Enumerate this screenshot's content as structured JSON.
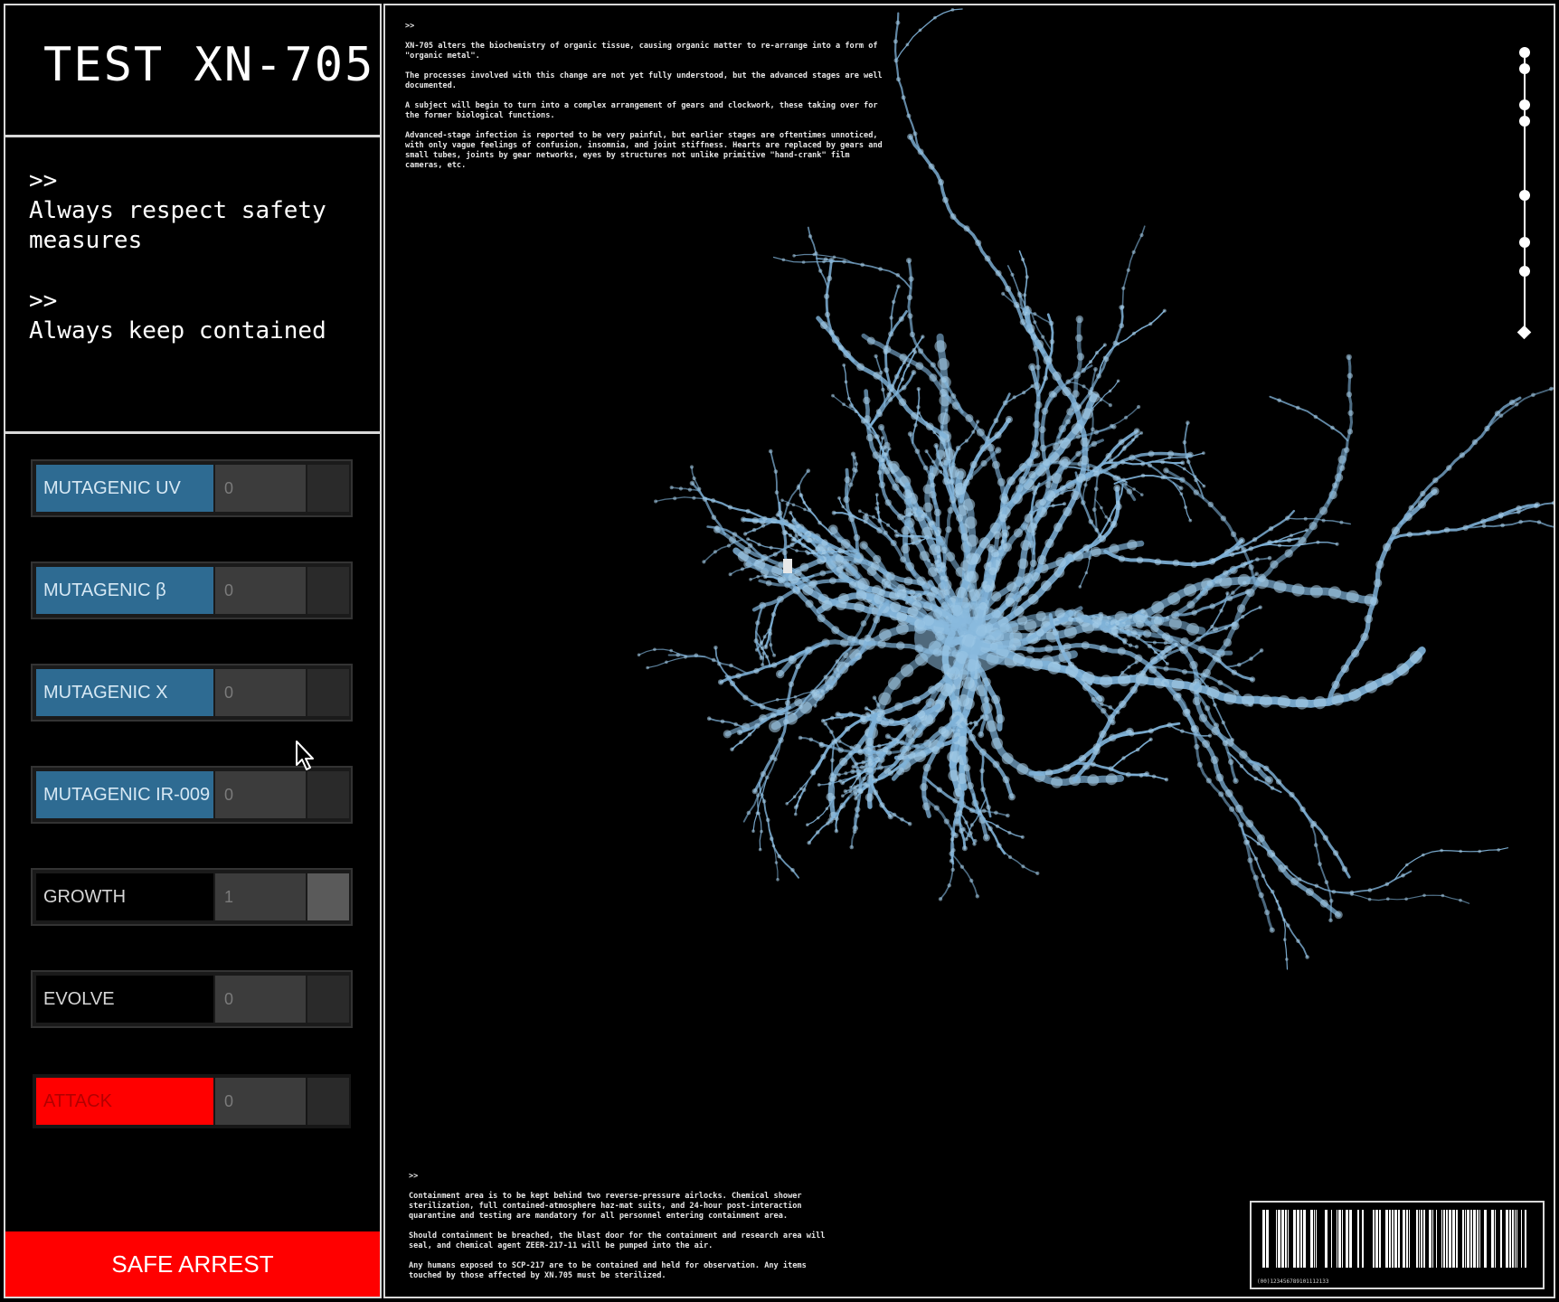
{
  "sidebar": {
    "title": "TEST XN-705",
    "notes": [
      {
        "prompt": ">>",
        "text": "Always respect safety measures"
      },
      {
        "prompt": ">>",
        "text": "Always keep contained"
      }
    ],
    "controls": [
      {
        "label": "MUTAGENIC UV",
        "value": "0"
      },
      {
        "label": "MUTAGENIC β",
        "value": "0"
      },
      {
        "label": "MUTAGENIC X",
        "value": "0"
      },
      {
        "label": "MUTAGENIC IR-009",
        "value": "0"
      },
      {
        "label": "GROWTH",
        "value": "1"
      },
      {
        "label": "EVOLVE",
        "value": "0"
      },
      {
        "label": "ATTACK",
        "value": "0"
      }
    ],
    "safe_arrest_label": "SAFE ARREST"
  },
  "info_top": {
    "prompt": ">>",
    "paragraphs": [
      "XN-705 alters the biochemistry of organic tissue, causing organic matter to re-arrange into a form of \"organic metal\".",
      "The processes involved with this change are not yet fully understood, but the advanced stages are well documented.",
      "A subject will begin to turn into a complex arrangement of gears and clockwork, these taking over for the former biological functions.",
      "Advanced-stage infection is reported to be very painful, but earlier stages are oftentimes unnoticed, with only vague feelings of confusion, insomnia, and joint stiffness. Hearts are replaced by gears and small tubes, joints by gear networks, eyes by structures not unlike primitive \"hand-crank\" film cameras, etc."
    ]
  },
  "info_bottom": {
    "prompt": ">>",
    "paragraphs": [
      "Containment area is to be kept behind two reverse-pressure airlocks. Chemical shower sterilization, full contained-atmosphere haz-mat suits, and 24-hour post-interaction quarantine and testing are mandatory for all personnel entering containment area.",
      "Should containment be breached, the blast door for the containment and research area will seal, and chemical agent ZEER-217-11 will be pumped into the air.",
      "Any humans exposed to SCP-217 are to be contained and held for observation. Any items touched by those affected by XN.705 must be sterilized."
    ]
  },
  "barcode": {
    "number": "(00)123456789101112133"
  },
  "colors": {
    "accent_blue": "#2e6b92",
    "alert_red": "#ff0000",
    "organism": "#7fb2d8"
  }
}
